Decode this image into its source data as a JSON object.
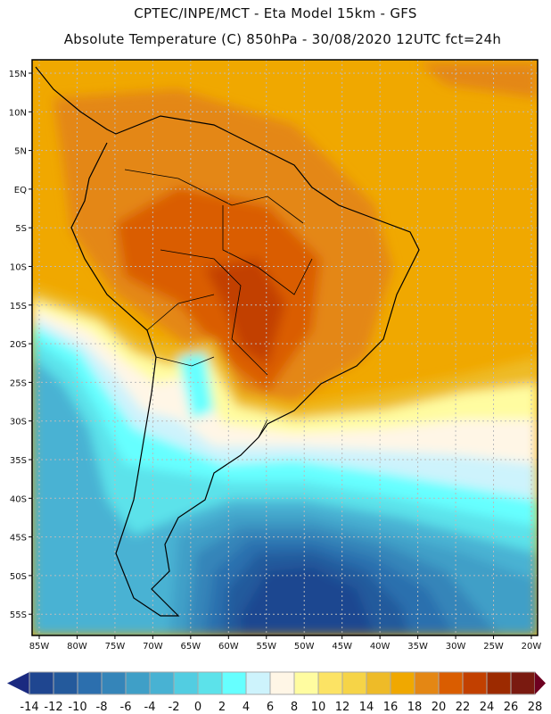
{
  "header": {
    "title_line1": "CPTEC/INPE/MCT -  Eta Model 15km - GFS",
    "title_line2": "Absolute Temperature (C) 850hPa - 30/08/2020 12UTC fct=24h"
  },
  "map": {
    "variable": "Absolute Temperature (C)",
    "level": "850hPa",
    "lat_labels": [
      "15N",
      "10N",
      "5N",
      "EQ",
      "5S",
      "10S",
      "15S",
      "20S",
      "25S",
      "30S",
      "35S",
      "40S",
      "45S",
      "50S",
      "55S"
    ],
    "lon_labels": [
      "85W",
      "80W",
      "75W",
      "70W",
      "65W",
      "60W",
      "55W",
      "50W",
      "45W",
      "40W",
      "35W",
      "30W",
      "25W",
      "20W"
    ]
  },
  "colorbar": {
    "labels": [
      "-14",
      "-12",
      "-10",
      "-8",
      "-6",
      "-4",
      "-2",
      "0",
      "2",
      "4",
      "6",
      "8",
      "10",
      "12",
      "14",
      "16",
      "18",
      "20",
      "22",
      "24",
      "26",
      "28"
    ],
    "colors": [
      "#1f4690",
      "#245a9c",
      "#2c6fae",
      "#3585b9",
      "#3f9fc7",
      "#48b2d3",
      "#52cde1",
      "#5ce2ea",
      "#66ffff",
      "#cdf3fc",
      "#fff6e6",
      "#fffca0",
      "#fce364",
      "#f6d447",
      "#eebb28",
      "#f0a800",
      "#e48714",
      "#da5d00",
      "#c24000",
      "#9c2a00",
      "#7a1a10"
    ],
    "under_color": "#1a2a80",
    "over_color": "#6e0020"
  }
}
